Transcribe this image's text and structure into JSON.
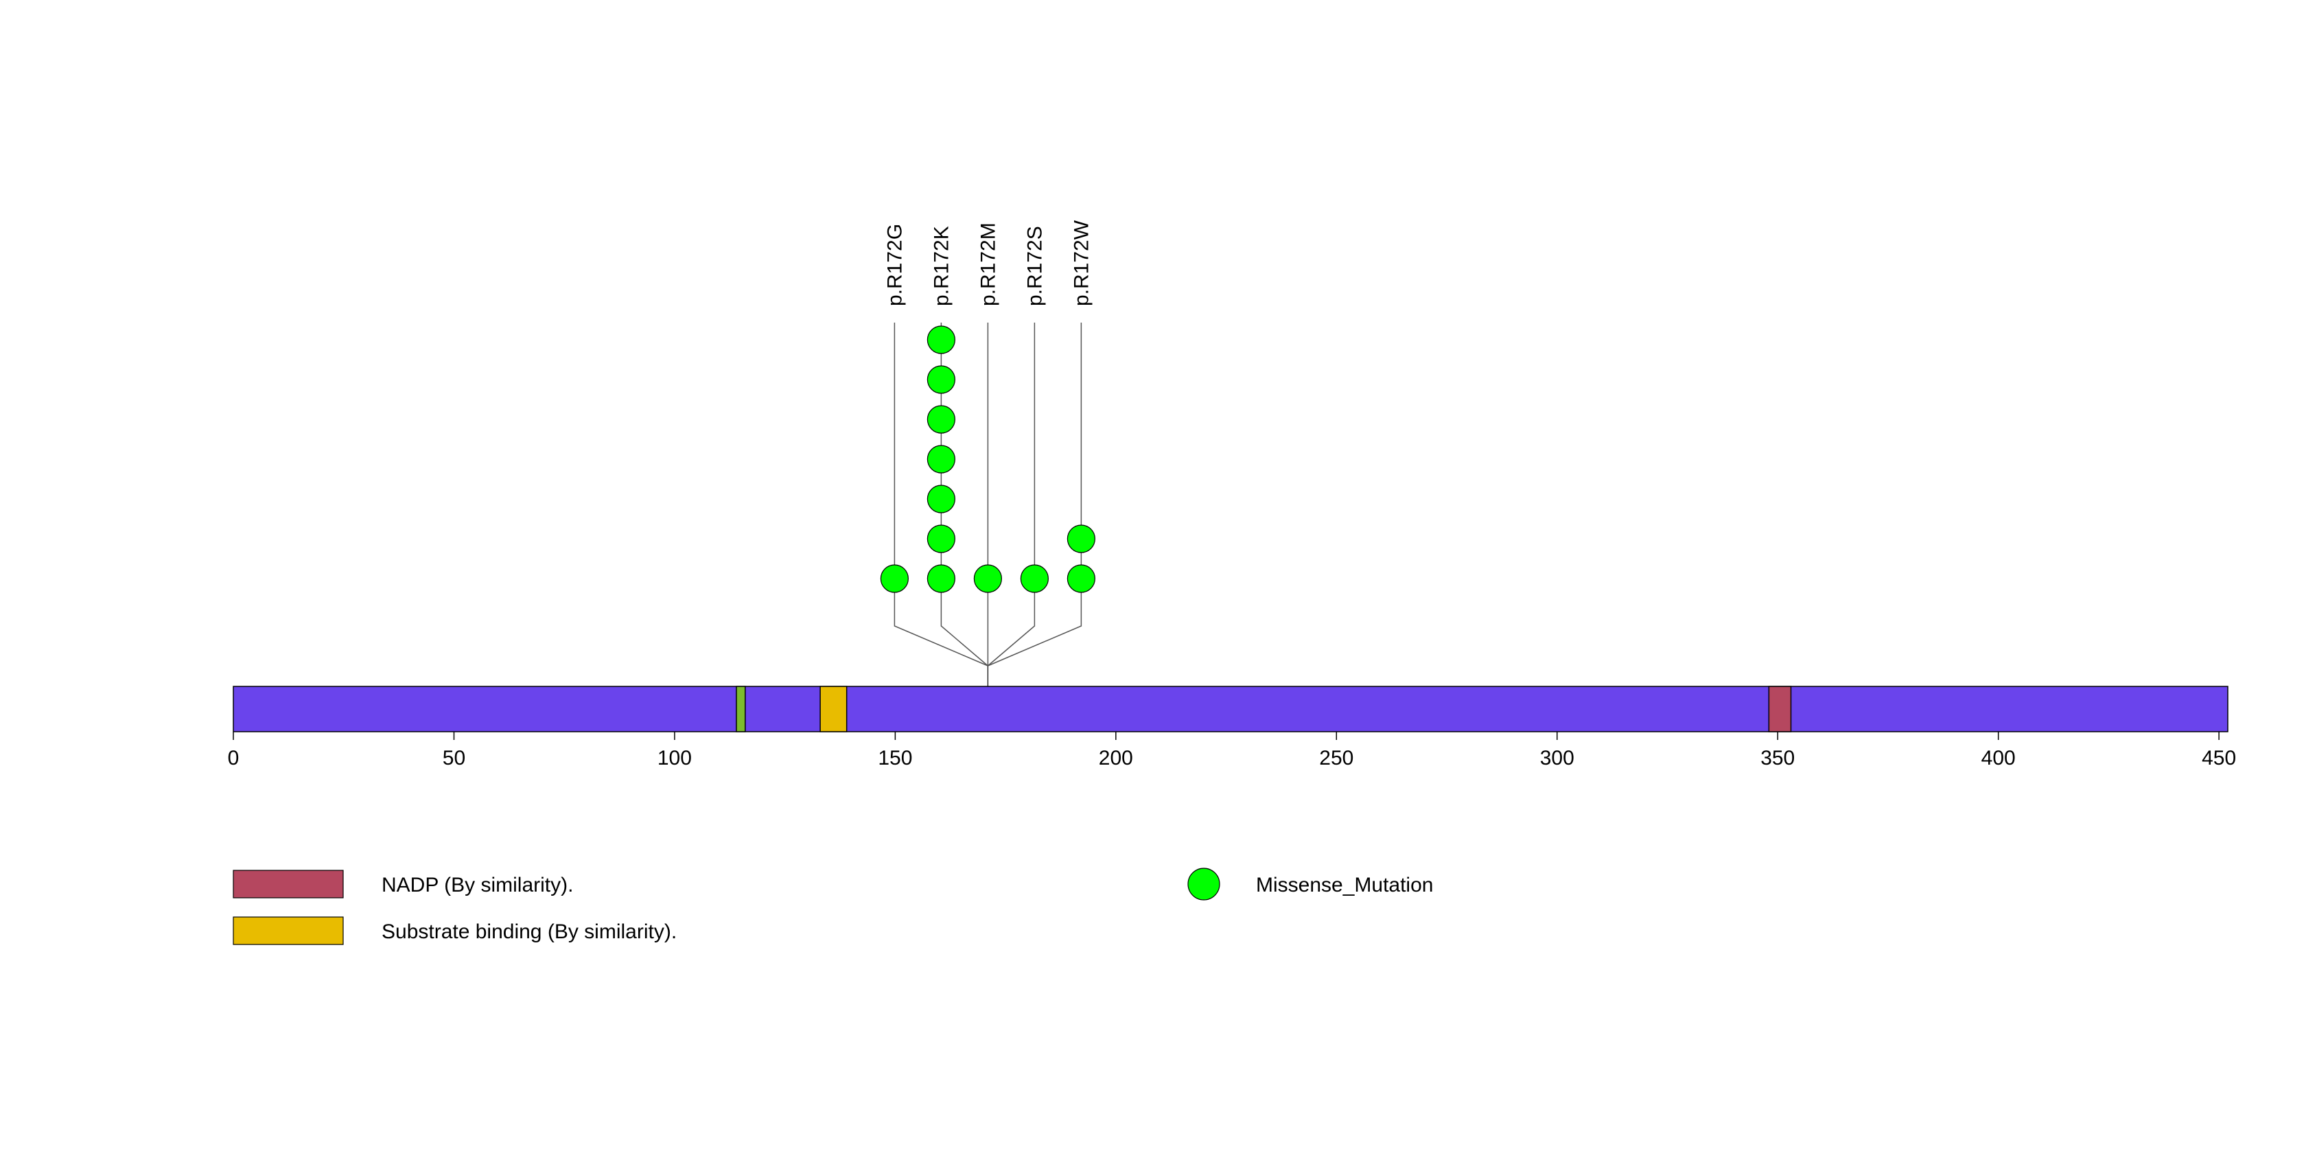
{
  "protein": {
    "length": 452,
    "backbone_color": "#6A44EC",
    "domains": [
      {
        "start": 114,
        "end": 116,
        "color": "#7DBB2D",
        "label": ""
      },
      {
        "start": 133,
        "end": 139,
        "color": "#E8BC00",
        "label": "Substrate binding (By similarity)."
      },
      {
        "start": 348,
        "end": 353,
        "color": "#B5475F",
        "label": "NADP (By similarity)."
      }
    ],
    "axis": {
      "min": 0,
      "max": 452,
      "ticks": [
        0,
        50,
        100,
        150,
        200,
        250,
        300,
        350,
        400,
        450
      ]
    }
  },
  "mutations": {
    "position": 171,
    "color": "#00FF00",
    "items": [
      {
        "label": "p.R172G",
        "count": 1
      },
      {
        "label": "p.R172K",
        "count": 7
      },
      {
        "label": "p.R172M",
        "count": 1
      },
      {
        "label": "p.R172S",
        "count": 1
      },
      {
        "label": "p.R172W",
        "count": 2
      }
    ]
  },
  "legend": {
    "domain_items": [
      {
        "label": "NADP (By similarity).",
        "color": "#B5475F"
      },
      {
        "label": "Substrate binding (By similarity).",
        "color": "#E8BC00"
      }
    ],
    "mutation_items": [
      {
        "label": "Missense_Mutation",
        "color": "#00FF00"
      }
    ]
  }
}
